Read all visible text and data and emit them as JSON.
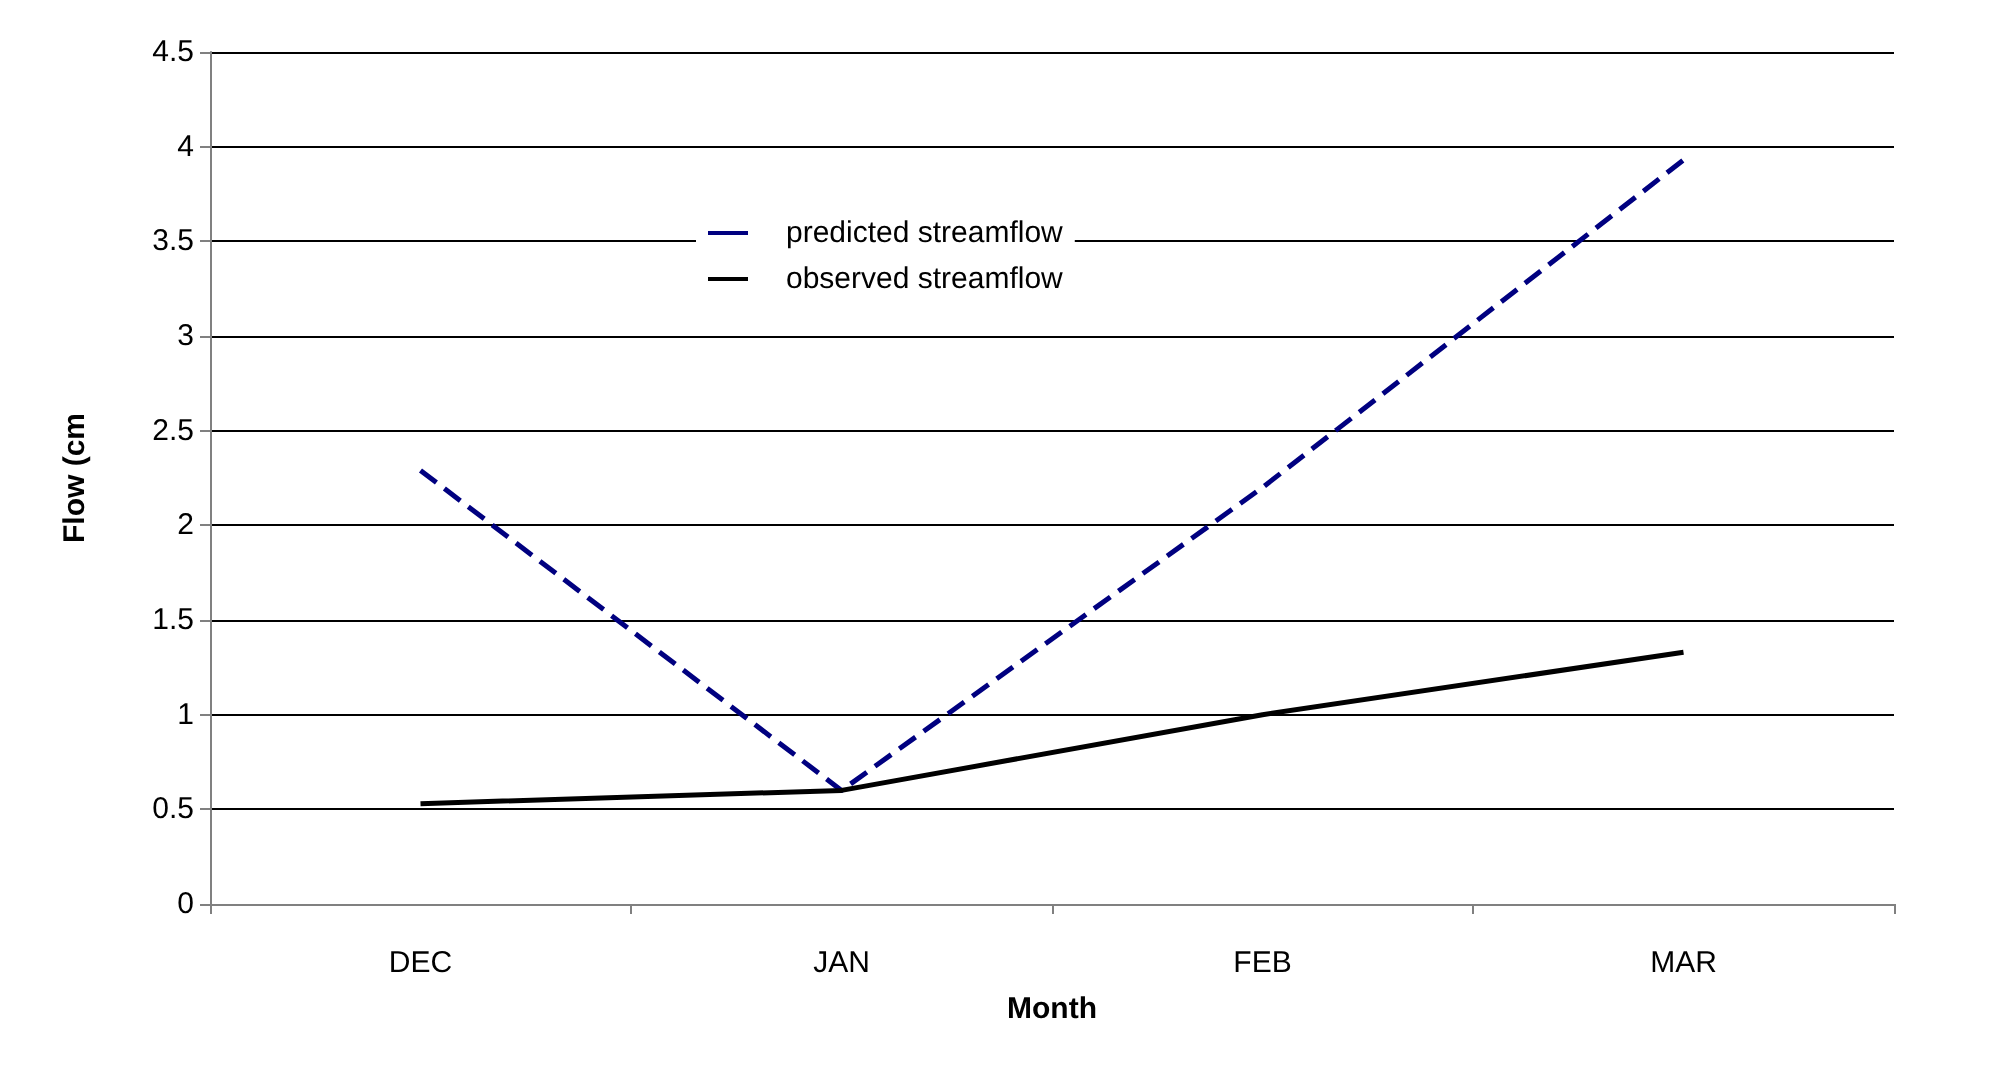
{
  "chart_data": {
    "type": "line",
    "xlabel": "Month",
    "ylabel": "Flow (cm",
    "categories": [
      "DEC",
      "JAN",
      "FEB",
      "MAR"
    ],
    "series": [
      {
        "name": "predicted streamflow",
        "color": "#000080",
        "line_style": "dashed",
        "values": [
          2.29,
          0.6,
          2.2,
          3.93
        ]
      },
      {
        "name": "observed streamflow",
        "color": "#000000",
        "line_style": "solid",
        "values": [
          0.53,
          0.6,
          1.0,
          1.33
        ]
      }
    ],
    "ylim": [
      0,
      4.5
    ],
    "yticks": [
      0,
      0.5,
      1,
      1.5,
      2,
      2.5,
      3,
      3.5,
      4,
      4.5
    ],
    "grid": "y",
    "legend": "top",
    "marker": "none"
  }
}
